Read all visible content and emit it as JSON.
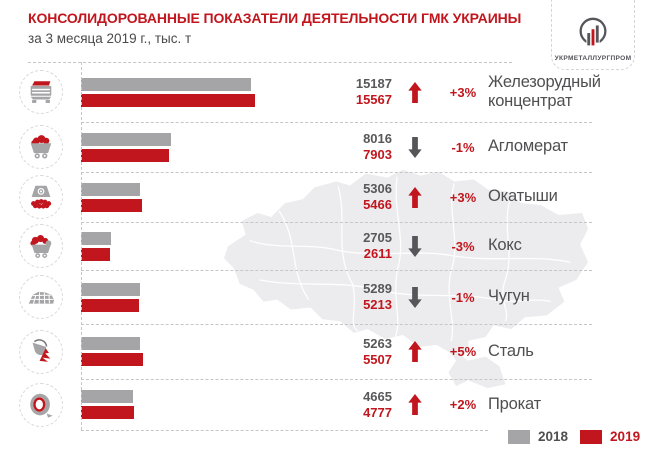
{
  "header": {
    "title": "КОНСОЛИДОРОВАННЫЕ ПОКАЗАТЕЛИ ДЕЯТЕЛЬНОСТИ ГМК УКРАИНЫ",
    "subtitle": "за 3 месяца 2019 г., тыс. т"
  },
  "logo": {
    "name": "УКРМЕТАЛЛУРГПРОМ"
  },
  "colors": {
    "accent_red": "#C1161D",
    "bar_gray": "#A5A5A7",
    "text_dark": "#4F4F51",
    "number_gray": "#58585A",
    "map_fill": "#ECECEE"
  },
  "legend": {
    "items": [
      {
        "label": "2018",
        "color": "#A5A5A7"
      },
      {
        "label": "2019",
        "color": "#C1161D"
      }
    ]
  },
  "chart_data": {
    "type": "bar",
    "orientation": "horizontal",
    "title": "КОНСОЛИДОРОВАННЫЕ ПОКАЗАТЕЛИ ДЕЯТЕЛЬНОСТИ ГМК УКРАИНЫ",
    "subtitle": "за 3 месяца 2019 г., тыс. т",
    "unit": "тыс. т",
    "categories": [
      "Железорудный концентрат",
      "Агломерат",
      "Окатыши",
      "Кокс",
      "Чугун",
      "Сталь",
      "Прокат"
    ],
    "series": [
      {
        "name": "2018",
        "values": [
          15187,
          8016,
          5306,
          2705,
          5289,
          5263,
          4665
        ]
      },
      {
        "name": "2019",
        "values": [
          15567,
          7903,
          5466,
          2611,
          5213,
          5507,
          4777
        ]
      }
    ],
    "changes": [
      "+3%",
      "-1%",
      "+3%",
      "-3%",
      "-1%",
      "+5%",
      "+2%"
    ],
    "trends": [
      "up",
      "down",
      "up",
      "down",
      "down",
      "up",
      "up"
    ],
    "icons": [
      "railcar",
      "minecart",
      "pellets",
      "coke",
      "pigiron",
      "ladle",
      "coil"
    ],
    "xmax": 15567,
    "grid": false,
    "legend_position": "bottom-right"
  }
}
